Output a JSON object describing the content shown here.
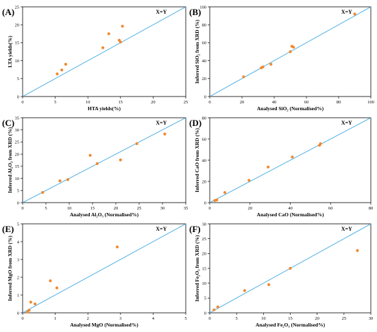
{
  "chart_data": [
    {
      "type": "scatter",
      "panel": "(A)",
      "xlabel": "HTA yields(%)",
      "ylabel": "LTA yields(%)",
      "annotation": "X=Y",
      "xlim": [
        0,
        25
      ],
      "ylim": [
        0,
        25
      ],
      "xticks": [
        "0",
        "5",
        "10",
        "15",
        "20",
        "25"
      ],
      "yticks": [
        "0",
        "5",
        "10",
        "15",
        "20",
        "25"
      ],
      "points": [
        [
          5.3,
          6.3
        ],
        [
          6.0,
          7.4
        ],
        [
          6.6,
          9.0
        ],
        [
          12.3,
          13.6
        ],
        [
          13.2,
          17.5
        ],
        [
          14.8,
          15.7
        ],
        [
          15.0,
          15.2
        ],
        [
          15.3,
          19.6
        ]
      ],
      "reference_line": "x=y"
    },
    {
      "type": "scatter",
      "panel": "(B)",
      "xlabel": "Analysed SiO₂ (Normalised%)",
      "ylabel": "Inferred SiO₂ from XRD (%)",
      "annotation": "X=Y",
      "xlim": [
        0,
        100
      ],
      "ylim": [
        0,
        100
      ],
      "xticks": [
        "0",
        "20",
        "40",
        "60",
        "80",
        "100"
      ],
      "yticks": [
        "0",
        "20",
        "40",
        "60",
        "80",
        "100"
      ],
      "points": [
        [
          21,
          22
        ],
        [
          32,
          32
        ],
        [
          33,
          33
        ],
        [
          38,
          36
        ],
        [
          50,
          50
        ],
        [
          51,
          56
        ],
        [
          52,
          55
        ],
        [
          90,
          92
        ]
      ],
      "reference_line": "x=y"
    },
    {
      "type": "scatter",
      "panel": "(C)",
      "xlabel": "Analysed Al₂O₃ (Normalised%)",
      "ylabel": "Inferred Al₂O₃ from XRD (%)",
      "annotation": "X=Y",
      "xlim": [
        0,
        35
      ],
      "ylim": [
        0,
        35
      ],
      "xticks": [
        "0",
        "5",
        "10",
        "15",
        "20",
        "25",
        "30",
        "35"
      ],
      "yticks": [
        "0",
        "5",
        "10",
        "15",
        "20",
        "25",
        "30",
        "35"
      ],
      "points": [
        [
          4.3,
          4.2
        ],
        [
          8.0,
          9.0
        ],
        [
          9.7,
          9.5
        ],
        [
          14.5,
          19.5
        ],
        [
          16.0,
          16.1
        ],
        [
          21.0,
          17.6
        ],
        [
          24.5,
          24.3
        ],
        [
          30.5,
          28.3
        ]
      ],
      "reference_line": "x=y"
    },
    {
      "type": "scatter",
      "panel": "(D)",
      "xlabel": "Analysed CaO (Normalised%)",
      "ylabel": "Inferred CaO from XRD (%)",
      "annotation": "X=Y",
      "xlim": [
        0,
        80
      ],
      "ylim": [
        0,
        80
      ],
      "xticks": [
        "0",
        "20",
        "40",
        "60",
        "80"
      ],
      "yticks": [
        "0",
        "20",
        "40",
        "60",
        "80"
      ],
      "points": [
        [
          2.5,
          2.0
        ],
        [
          3.5,
          2.5
        ],
        [
          7.5,
          9.5
        ],
        [
          19.5,
          21.0
        ],
        [
          29.0,
          33.5
        ],
        [
          41.0,
          43.0
        ],
        [
          54.5,
          54.0
        ],
        [
          55.0,
          55.5
        ]
      ],
      "reference_line": "x=y"
    },
    {
      "type": "scatter",
      "panel": "(E)",
      "xlabel": "Analysed MgO (Normalised%)",
      "ylabel": "Inferred MgO from XRD (%)",
      "annotation": "X=Y",
      "xlim": [
        0,
        5
      ],
      "ylim": [
        0,
        5
      ],
      "xticks": [
        "0",
        "1",
        "2",
        "3",
        "4",
        "5"
      ],
      "yticks": [
        "0",
        "1",
        "2",
        "3",
        "4",
        "5"
      ],
      "points": [
        [
          0.15,
          0.05
        ],
        [
          0.2,
          0.15
        ],
        [
          0.25,
          0.6
        ],
        [
          0.38,
          0.5
        ],
        [
          0.85,
          1.8
        ],
        [
          1.05,
          1.4
        ],
        [
          2.9,
          3.7
        ]
      ],
      "reference_line": "x=y"
    },
    {
      "type": "scatter",
      "panel": "(F)",
      "xlabel": "Analysed Fe₂O₃ (Normalised%)",
      "ylabel": "Inferred Fe₂O₃ from XRD (%)",
      "annotation": "X=Y",
      "xlim": [
        0,
        30
      ],
      "ylim": [
        0,
        30
      ],
      "xticks": [
        "0",
        "5",
        "10",
        "15",
        "20",
        "25",
        "30"
      ],
      "yticks": [
        "0",
        "5",
        "10",
        "15",
        "20",
        "25",
        "30"
      ],
      "points": [
        [
          0.8,
          1.0
        ],
        [
          1.5,
          2.0
        ],
        [
          6.5,
          7.5
        ],
        [
          11.0,
          9.5
        ],
        [
          15.0,
          15.0
        ],
        [
          27.5,
          21.0
        ]
      ],
      "reference_line": "x=y"
    }
  ],
  "colors": {
    "marker": "#f0892f",
    "reference_line": "#4fb0e4",
    "axis": "#000000"
  }
}
